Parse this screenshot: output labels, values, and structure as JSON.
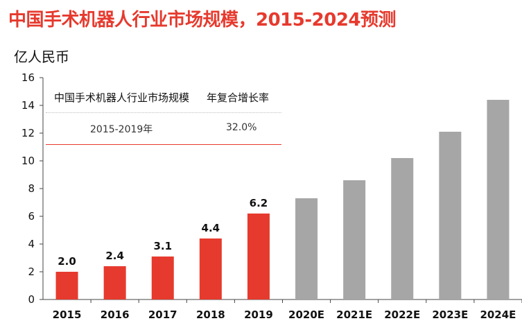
{
  "title": "中国手术机器人行业市场规模，2015-2024预测",
  "unit": "亿人民币",
  "inset_table": {
    "headers": [
      "中国手术机器人行业市场规模",
      "年复合增长率"
    ],
    "row": [
      "2015-2019年",
      "32.0%"
    ]
  },
  "colors": {
    "actual": "#e63a2e",
    "forecast": "#a6a6a6",
    "title": "#e63a2e"
  },
  "chart_data": {
    "type": "bar",
    "title": "中国手术机器人行业市场规模，2015-2024预测",
    "ylabel": "亿人民币",
    "xlabel": "",
    "ylim": [
      0,
      16
    ],
    "yticks": [
      0,
      2,
      4,
      6,
      8,
      10,
      12,
      14,
      16
    ],
    "categories": [
      "2015",
      "2016",
      "2017",
      "2018",
      "2019",
      "2020E",
      "2021E",
      "2022E",
      "2023E",
      "2024E"
    ],
    "values": [
      2.0,
      2.4,
      3.1,
      4.4,
      6.2,
      7.3,
      8.6,
      10.2,
      12.1,
      14.4
    ],
    "data_labels": [
      "2.0",
      "2.4",
      "3.1",
      "4.4",
      "6.2",
      "",
      "",
      "",
      "",
      ""
    ],
    "bar_types": [
      "actual",
      "actual",
      "actual",
      "actual",
      "actual",
      "forecast",
      "forecast",
      "forecast",
      "forecast",
      "forecast"
    ],
    "grid": false,
    "legend": "none"
  }
}
